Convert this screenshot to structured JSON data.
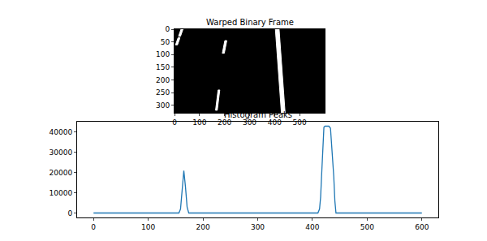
{
  "chart_data": [
    {
      "type": "image",
      "title": "Warped Binary Frame",
      "xlim": [
        0,
        600
      ],
      "ylim": [
        330,
        0
      ],
      "xticks": [
        0,
        100,
        200,
        300,
        400,
        500
      ],
      "yticks": [
        0,
        50,
        100,
        150,
        200,
        250,
        300
      ],
      "color": "#ffffff",
      "regions": [
        {
          "x": [
            26,
            34,
            24,
            16
          ],
          "y": [
            0,
            0,
            28,
            28
          ]
        },
        {
          "x": [
            14,
            22,
            12,
            4
          ],
          "y": [
            34,
            34,
            62,
            62
          ]
        },
        {
          "x": [
            201,
            209,
            199,
            191
          ],
          "y": [
            45,
            45,
            95,
            95
          ]
        },
        {
          "x": [
            174,
            181,
            171,
            164
          ],
          "y": [
            240,
            240,
            320,
            320
          ]
        },
        {
          "x": [
            403,
            418,
            442,
            427
          ],
          "y": [
            0,
            0,
            330,
            330
          ]
        }
      ]
    },
    {
      "type": "line",
      "title": "Histogram Peaks",
      "xlim": [
        -30,
        630
      ],
      "ylim": [
        -2200,
        45200
      ],
      "xticks": [
        0,
        100,
        200,
        300,
        400,
        500,
        600
      ],
      "yticks": [
        0,
        10000,
        20000,
        30000,
        40000
      ],
      "color": "#1f77b4",
      "x": [
        0,
        150,
        156,
        159,
        162,
        165,
        168,
        171,
        174,
        180,
        400,
        410,
        413,
        415,
        417,
        419,
        421,
        423,
        425,
        430,
        433,
        435,
        437,
        439,
        441,
        443,
        450,
        600
      ],
      "values": [
        0,
        0,
        0,
        2000,
        12000,
        21000,
        13000,
        3000,
        0,
        0,
        0,
        0,
        2000,
        8000,
        20000,
        35000,
        42500,
        43000,
        43000,
        43000,
        42000,
        35000,
        27000,
        18000,
        6000,
        0,
        0,
        0
      ]
    }
  ]
}
